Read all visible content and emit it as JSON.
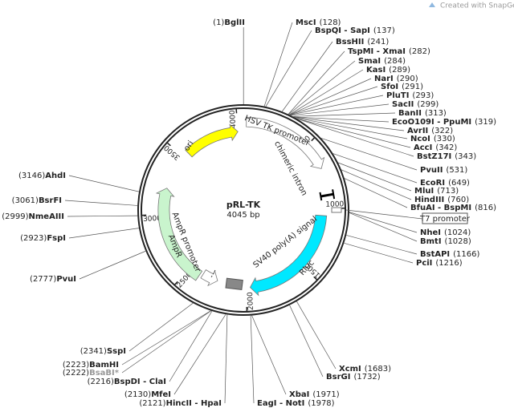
{
  "header": {
    "credit": "Created with SnapGene®"
  },
  "map": {
    "name": "pRL-TK",
    "size": "4045 bp",
    "length": 4045,
    "ticks": [
      500,
      1000,
      1500,
      2000,
      2500,
      3000,
      3500,
      4000
    ],
    "features": [
      "ori",
      "HSV TK promoter",
      "chimeric intron",
      "T7 promoter",
      "Rluc",
      "SV40 poly(A) signal",
      "AmpR promoter",
      "AmpR"
    ],
    "sites": [
      {
        "name": "BglII",
        "position": {
          "value": 1,
          "label": "(1)"
        }
      },
      {
        "name": "MscI",
        "position": {
          "value": 128,
          "label": "(128)"
        }
      },
      {
        "name": "BspQI - SapI",
        "position": {
          "value": 137,
          "label": "(137)"
        }
      },
      {
        "name": "BssHII",
        "position": {
          "value": 241,
          "label": "(241)"
        }
      },
      {
        "name": "TspMI - XmaI",
        "position": {
          "value": 282,
          "label": "(282)"
        }
      },
      {
        "name": "SmaI",
        "position": {
          "value": 284,
          "label": "(284)"
        }
      },
      {
        "name": "KasI",
        "position": {
          "value": 289,
          "label": "(289)"
        }
      },
      {
        "name": "NarI",
        "position": {
          "value": 290,
          "label": "(290)"
        }
      },
      {
        "name": "SfoI",
        "position": {
          "value": 291,
          "label": "(291)"
        }
      },
      {
        "name": "PluTI",
        "position": {
          "value": 293,
          "label": "(293)"
        }
      },
      {
        "name": "SacII",
        "position": {
          "value": 299,
          "label": "(299)"
        }
      },
      {
        "name": "BanII",
        "position": {
          "value": 313,
          "label": "(313)"
        }
      },
      {
        "name": "EcoO109I - PpuMI",
        "position": {
          "value": 319,
          "label": "(319)"
        }
      },
      {
        "name": "AvrII",
        "position": {
          "value": 322,
          "label": "(322)"
        }
      },
      {
        "name": "NcoI",
        "position": {
          "value": 330,
          "label": "(330)"
        }
      },
      {
        "name": "AccI",
        "position": {
          "value": 342,
          "label": "(342)"
        }
      },
      {
        "name": "BstZ17I",
        "position": {
          "value": 343,
          "label": "(343)"
        }
      },
      {
        "name": "PvuII",
        "position": {
          "value": 531,
          "label": "(531)"
        }
      },
      {
        "name": "EcoRI",
        "position": {
          "value": 649,
          "label": "(649)"
        }
      },
      {
        "name": "MluI",
        "position": {
          "value": 713,
          "label": "(713)"
        }
      },
      {
        "name": "HindIII",
        "position": {
          "value": 760,
          "label": "(760)"
        }
      },
      {
        "name": "BfuAI - BspMI",
        "position": {
          "value": 816,
          "label": "(816)"
        }
      },
      {
        "name": "NheI",
        "position": {
          "value": 1024,
          "label": "(1024)"
        }
      },
      {
        "name": "BmtI",
        "position": {
          "value": 1028,
          "label": "(1028)"
        }
      },
      {
        "name": "BstAPI",
        "position": {
          "value": 1166,
          "label": "(1166)"
        }
      },
      {
        "name": "PciI",
        "position": {
          "value": 1216,
          "label": "(1216)"
        }
      },
      {
        "name": "XcmI",
        "position": {
          "value": 1683,
          "label": "(1683)"
        }
      },
      {
        "name": "BsrGI",
        "position": {
          "value": 1732,
          "label": "(1732)"
        }
      },
      {
        "name": "XbaI",
        "position": {
          "value": 1971,
          "label": "(1971)"
        }
      },
      {
        "name": "EagI - NotI",
        "position": {
          "value": 1978,
          "label": "(1978)"
        }
      },
      {
        "name": "HincII - HpaI",
        "position": {
          "value": 2121,
          "label": "(2121)"
        }
      },
      {
        "name": "MfeI",
        "position": {
          "value": 2130,
          "label": "(2130)"
        }
      },
      {
        "name": "BspDI - ClaI",
        "position": {
          "value": 2216,
          "label": "(2216)"
        }
      },
      {
        "name": "BsaBI*",
        "position": {
          "value": 2222,
          "label": "(2222)"
        },
        "color": "#999999"
      },
      {
        "name": "BamHI",
        "position": {
          "value": 2223,
          "label": "(2223)"
        }
      },
      {
        "name": "SspI",
        "position": {
          "value": 2341,
          "label": "(2341)"
        }
      },
      {
        "name": "PvuI",
        "position": {
          "value": 2777,
          "label": "(2777)"
        }
      },
      {
        "name": "FspI",
        "position": {
          "value": 2923,
          "label": "(2923)"
        }
      },
      {
        "name": "NmeAIII",
        "position": {
          "value": 2999,
          "label": "(2999)"
        }
      },
      {
        "name": "BsrFI",
        "position": {
          "value": 3061,
          "label": "(3061)"
        }
      },
      {
        "name": "AhdI",
        "position": {
          "value": 3146,
          "label": "(3146)"
        }
      }
    ]
  }
}
